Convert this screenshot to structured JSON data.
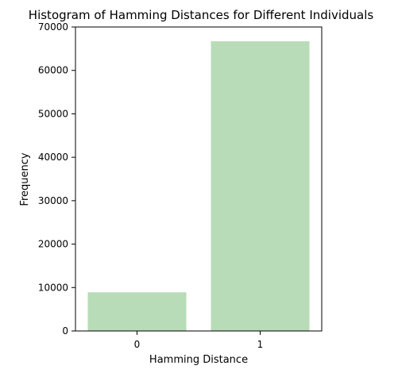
{
  "chart_data": {
    "type": "bar",
    "title": "Histogram of Hamming Distances for Different Individuals",
    "xlabel": "Hamming Distance",
    "ylabel": "Frequency",
    "categories": [
      "0",
      "1"
    ],
    "values": [
      8900,
      66700
    ],
    "ylim": [
      0,
      70000
    ],
    "yticks": [
      "0",
      "10000",
      "20000",
      "30000",
      "40000",
      "50000",
      "60000",
      "70000"
    ],
    "grid": false,
    "legend": false,
    "bar_color": "#b7dcb7"
  }
}
